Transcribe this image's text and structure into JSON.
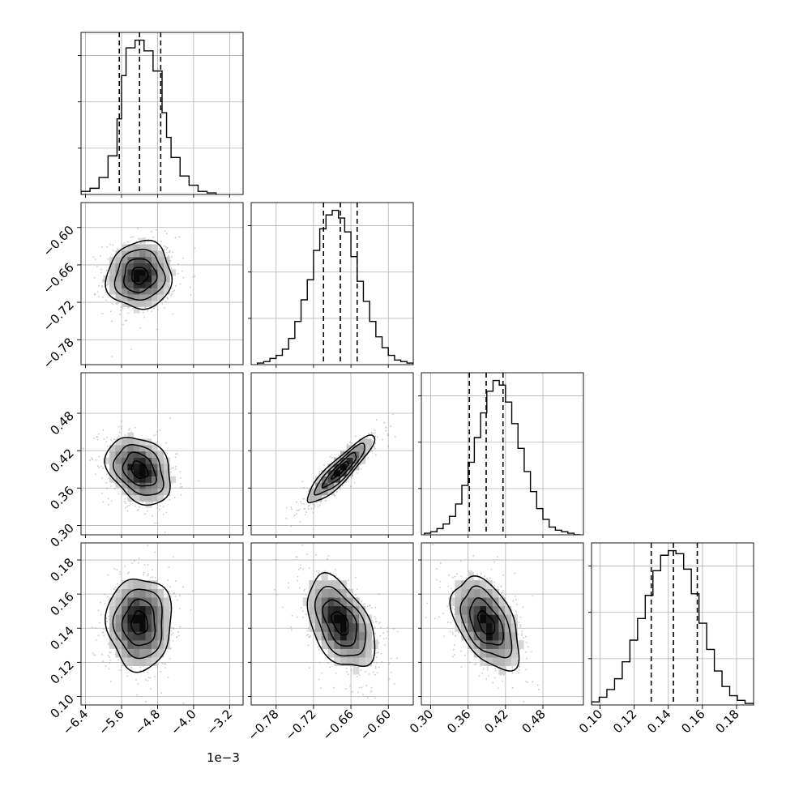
{
  "chart_data": {
    "type": "corner",
    "n_params": 4,
    "colors": {
      "line": "#000000",
      "grid": "#b0b0b0",
      "scatter": "#8a8a8a",
      "density_light": "#f2f2f2",
      "density_dark": "#000000"
    },
    "grid": true,
    "params": [
      {
        "range": [
          -6.5,
          -2.9
        ],
        "ticks": [
          -6.4,
          -5.6,
          -4.8,
          -4.0,
          -3.2
        ],
        "tick_labels": [
          "−6.4",
          "−5.6",
          "−4.8",
          "−4.0",
          "−3.2"
        ],
        "offset_label": "1e−3",
        "quantiles": [
          -5.65,
          -5.2,
          -4.73
        ],
        "mean": -5.2,
        "sd": 0.36,
        "hist_edges": [
          -6.5,
          -6.3,
          -6.1,
          -5.9,
          -5.7,
          -5.6,
          -5.5,
          -5.3,
          -5.1,
          -4.9,
          -4.7,
          -4.6,
          -4.5,
          -4.3,
          -4.1,
          -3.9,
          -3.7,
          -3.5
        ],
        "hist_counts": [
          0.02,
          0.04,
          0.11,
          0.25,
          0.49,
          0.77,
          0.95,
          1.0,
          0.93,
          0.8,
          0.53,
          0.37,
          0.24,
          0.12,
          0.06,
          0.02,
          0.01
        ]
      },
      {
        "range": [
          -0.82,
          -0.56
        ],
        "ticks": [
          -0.78,
          -0.72,
          -0.66,
          -0.6
        ],
        "tick_labels": [
          "−0.78",
          "−0.72",
          "−0.66",
          "−0.60"
        ],
        "quantiles": [
          -0.704,
          -0.677,
          -0.65
        ],
        "mean": -0.677,
        "sd": 0.027,
        "hist_edges": [
          -0.81,
          -0.8,
          -0.79,
          -0.78,
          -0.77,
          -0.76,
          -0.75,
          -0.74,
          -0.73,
          -0.72,
          -0.71,
          -0.7,
          -0.69,
          -0.68,
          -0.67,
          -0.66,
          -0.65,
          -0.64,
          -0.63,
          -0.62,
          -0.61,
          -0.6,
          -0.59,
          -0.58,
          -0.57,
          -0.56
        ],
        "hist_counts": [
          0.01,
          0.02,
          0.04,
          0.06,
          0.1,
          0.17,
          0.28,
          0.42,
          0.55,
          0.74,
          0.88,
          0.97,
          1.0,
          0.95,
          0.86,
          0.7,
          0.54,
          0.41,
          0.28,
          0.18,
          0.11,
          0.06,
          0.03,
          0.02,
          0.01
        ]
      },
      {
        "range": [
          0.285,
          0.545
        ],
        "ticks": [
          0.3,
          0.36,
          0.42,
          0.48
        ],
        "tick_labels": [
          "0.30",
          "0.36",
          "0.42",
          "0.48"
        ],
        "quantiles": [
          0.362,
          0.389,
          0.416
        ],
        "mean": 0.389,
        "sd": 0.027,
        "hist_edges": [
          0.29,
          0.3,
          0.31,
          0.32,
          0.33,
          0.34,
          0.35,
          0.36,
          0.37,
          0.38,
          0.39,
          0.4,
          0.41,
          0.42,
          0.43,
          0.44,
          0.45,
          0.46,
          0.47,
          0.48,
          0.49,
          0.5,
          0.51,
          0.52,
          0.53,
          0.54
        ],
        "hist_counts": [
          0.01,
          0.02,
          0.04,
          0.07,
          0.12,
          0.2,
          0.32,
          0.47,
          0.63,
          0.79,
          0.93,
          1.0,
          0.97,
          0.86,
          0.72,
          0.56,
          0.41,
          0.28,
          0.17,
          0.1,
          0.05,
          0.03,
          0.02,
          0.01,
          0.0
        ]
      },
      {
        "range": [
          0.095,
          0.19
        ],
        "ticks": [
          0.1,
          0.12,
          0.14,
          0.16,
          0.18
        ],
        "tick_labels": [
          "0.10",
          "0.12",
          "0.14",
          "0.16",
          "0.18"
        ],
        "quantiles": [
          0.13,
          0.143,
          0.157
        ],
        "mean": 0.143,
        "sd": 0.0135,
        "hist_edges": [
          0.095,
          0.0995,
          0.104,
          0.1085,
          0.113,
          0.1175,
          0.122,
          0.1265,
          0.131,
          0.1355,
          0.14,
          0.1445,
          0.149,
          0.1535,
          0.158,
          0.1625,
          0.167,
          0.1715,
          0.176,
          0.1805,
          0.185,
          0.19
        ],
        "hist_counts": [
          0.02,
          0.05,
          0.1,
          0.17,
          0.28,
          0.42,
          0.56,
          0.71,
          0.87,
          0.97,
          1.0,
          0.98,
          0.88,
          0.72,
          0.53,
          0.36,
          0.22,
          0.12,
          0.06,
          0.03,
          0.01
        ]
      }
    ],
    "correlations": [
      {
        "i": 1,
        "j": 0,
        "rho": 0.05
      },
      {
        "i": 2,
        "j": 0,
        "rho": -0.3
      },
      {
        "i": 2,
        "j": 1,
        "rho": 0.9
      },
      {
        "i": 3,
        "j": 0,
        "rho": 0.0
      },
      {
        "i": 3,
        "j": 1,
        "rho": -0.45
      },
      {
        "i": 3,
        "j": 2,
        "rho": -0.48
      }
    ],
    "contour_levels_sigma": [
      0.5,
      1.0,
      1.5,
      2.0
    ]
  }
}
